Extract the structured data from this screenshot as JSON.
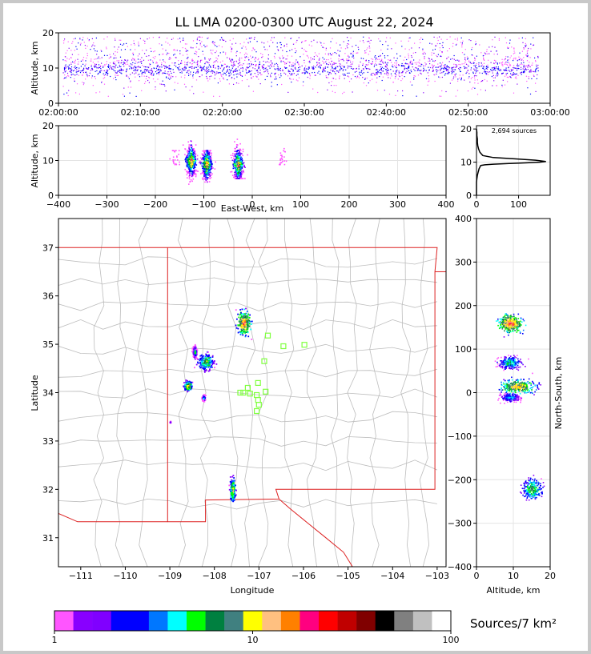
{
  "title": "LL LMA 0200-0300 UTC August 22, 2024",
  "colors": {
    "palette": [
      "#ff55ff",
      "#8800ff",
      "#8000ff",
      "#0000ff",
      "#0000ff",
      "#0077ff",
      "#00ffff",
      "#00ff00",
      "#008040",
      "#408080",
      "#ffff00",
      "#ffc080",
      "#ff8000",
      "#ff0080",
      "#ff0000",
      "#c00000",
      "#800000",
      "#000000",
      "#808080",
      "#c0c0c0",
      "#ffffff"
    ],
    "state_border": "#dd2222",
    "county_border": "#bdbdbd",
    "station_marker": "#80ff40"
  },
  "chart_data": [
    {
      "id": "time-height",
      "type": "scatter",
      "xlabel": "",
      "ylabel": "Altitude, km",
      "xlim": [
        "02:00:00",
        "03:00:00"
      ],
      "ylim": [
        0,
        20
      ],
      "xticks": [
        "02:00:00",
        "02:10:00",
        "02:20:00",
        "02:30:00",
        "02:40:00",
        "02:50:00",
        "03:00:00"
      ],
      "yticks": [
        "0",
        "10",
        "20"
      ],
      "description_points": [
        {
          "t_min": 1,
          "alt": 10
        },
        {
          "t_min": 6,
          "alt": 9
        },
        {
          "t_min": 9,
          "alt": 9.5
        },
        {
          "t_min": 14,
          "alt": 10
        },
        {
          "t_min": 18,
          "alt": 9
        },
        {
          "t_min": 22,
          "alt": 10
        },
        {
          "t_min": 27,
          "alt": 10
        },
        {
          "t_min": 31,
          "alt": 9.5
        },
        {
          "t_min": 36,
          "alt": 10
        },
        {
          "t_min": 40,
          "alt": 9.5
        },
        {
          "t_min": 44,
          "alt": 10
        },
        {
          "t_min": 48,
          "alt": 9
        },
        {
          "t_min": 52,
          "alt": 8.5
        },
        {
          "t_min": 56,
          "alt": 9
        }
      ]
    },
    {
      "id": "ew-height",
      "type": "scatter",
      "xlabel": "East-West, km",
      "ylabel": "Altitude, km",
      "xlim": [
        -400,
        400
      ],
      "ylim": [
        0,
        20
      ],
      "xticks": [
        "−400",
        "−300",
        "−200",
        "−100",
        "0",
        "100",
        "200",
        "300",
        "400"
      ],
      "yticks": [
        "0",
        "10",
        "20"
      ],
      "clusters": [
        {
          "x": -127,
          "alt_min": 2,
          "alt_max": 19,
          "core_alt": 10
        },
        {
          "x": -95,
          "alt_min": 4,
          "alt_max": 13,
          "core_alt": 9
        },
        {
          "x": -30,
          "alt_min": 5,
          "alt_max": 19,
          "core_alt": 9
        },
        {
          "x": -160,
          "alt_min": 9,
          "alt_max": 13,
          "core_alt": 11
        },
        {
          "x": 60,
          "alt_min": 9,
          "alt_max": 18,
          "core_alt": 11
        }
      ]
    },
    {
      "id": "altitude-histogram",
      "type": "line",
      "annotation": "2,694 sources",
      "xlim": [
        0,
        175
      ],
      "ylim": [
        0,
        21
      ],
      "xticks": [
        "0",
        "100"
      ],
      "yticks": [
        "0",
        "10",
        "20"
      ],
      "x": [
        0,
        0,
        1,
        2,
        4,
        6,
        10,
        20,
        40,
        80,
        120,
        150,
        165,
        140,
        90,
        40,
        15,
        8,
        5,
        3,
        2,
        2,
        1,
        1,
        0
      ],
      "y": [
        0,
        4,
        5,
        6,
        7,
        8,
        9,
        9.2,
        9.4,
        9.6,
        9.8,
        10,
        10.2,
        10.6,
        11,
        11.4,
        12,
        13,
        14,
        15,
        16,
        17,
        18,
        19,
        20
      ]
    },
    {
      "id": "plan-view",
      "type": "scatter",
      "xlabel": "Longitude",
      "ylabel": "Latitude",
      "xlim": [
        -111.5,
        -102.8
      ],
      "ylim": [
        30.4,
        37.6
      ],
      "xticks": [
        "−111",
        "−110",
        "−109",
        "−108",
        "−107",
        "−106",
        "−105",
        "−104",
        "−103"
      ],
      "yticks": [
        "31",
        "32",
        "33",
        "34",
        "35",
        "36",
        "37"
      ],
      "storms": [
        {
          "lon": -107.35,
          "lat": 35.45,
          "spread_lon": 0.12,
          "spread_lat": 0.2,
          "intensity": 1.0
        },
        {
          "lon": -108.2,
          "lat": 34.65,
          "spread_lon": 0.15,
          "spread_lat": 0.15,
          "intensity": 0.7
        },
        {
          "lon": -108.45,
          "lat": 34.85,
          "spread_lon": 0.04,
          "spread_lat": 0.12,
          "intensity": 0.5
        },
        {
          "lon": -108.6,
          "lat": 34.15,
          "spread_lon": 0.07,
          "spread_lat": 0.07,
          "intensity": 0.9
        },
        {
          "lon": -108.25,
          "lat": 33.9,
          "spread_lon": 0.03,
          "spread_lat": 0.05,
          "intensity": 0.5
        },
        {
          "lon": -107.6,
          "lat": 32.0,
          "spread_lon": 0.05,
          "spread_lat": 0.2,
          "intensity": 0.8
        },
        {
          "lon": -109.0,
          "lat": 33.4,
          "spread_lon": 0.01,
          "spread_lat": 0.01,
          "intensity": 0.2
        }
      ],
      "stations": [
        {
          "lon": -106.8,
          "lat": 35.18
        },
        {
          "lon": -106.45,
          "lat": 34.96
        },
        {
          "lon": -105.98,
          "lat": 34.99
        },
        {
          "lon": -106.88,
          "lat": 34.65
        },
        {
          "lon": -107.02,
          "lat": 34.2
        },
        {
          "lon": -107.25,
          "lat": 34.1
        },
        {
          "lon": -107.35,
          "lat": 34.0
        },
        {
          "lon": -107.2,
          "lat": 33.98
        },
        {
          "lon": -107.05,
          "lat": 33.95
        },
        {
          "lon": -107.02,
          "lat": 33.85
        },
        {
          "lon": -106.85,
          "lat": 34.02
        },
        {
          "lon": -107.0,
          "lat": 33.75
        },
        {
          "lon": -107.05,
          "lat": 33.62
        },
        {
          "lon": -107.42,
          "lat": 34.0
        }
      ]
    },
    {
      "id": "ns-height",
      "type": "scatter",
      "xlabel": "Altitude, km",
      "ylabel": "North-South, km",
      "xlim": [
        0,
        20
      ],
      "ylim": [
        -400,
        400
      ],
      "xticks": [
        "0",
        "10",
        "20"
      ],
      "yticks": [
        "−400",
        "−300",
        "−200",
        "−100",
        "0",
        "100",
        "200",
        "300",
        "400"
      ],
      "clusters": [
        {
          "ns": 160,
          "alt": 9,
          "spread_ns": 15,
          "spread_alt": 2.5,
          "intensity": 1.0
        },
        {
          "ns": 70,
          "alt": 9,
          "spread_ns": 12,
          "spread_alt": 2.5,
          "intensity": 0.6
        },
        {
          "ns": 15,
          "alt": 11,
          "spread_ns": 12,
          "spread_alt": 3.5,
          "intensity": 0.9
        },
        {
          "ns": -10,
          "alt": 9,
          "spread_ns": 8,
          "spread_alt": 2,
          "intensity": 0.5
        },
        {
          "ns": -220,
          "alt": 15,
          "spread_ns": 18,
          "spread_alt": 2,
          "intensity": 0.7
        }
      ]
    },
    {
      "id": "colorbar",
      "type": "heatmap",
      "label": "Sources/7 km²",
      "scale": "log",
      "ticks": [
        "1",
        "10",
        "100"
      ],
      "colors": [
        "#ff55ff",
        "#8800ff",
        "#8000ff",
        "#0000ff",
        "#0000ff",
        "#0077ff",
        "#00ffff",
        "#00ff00",
        "#008040",
        "#408080",
        "#ffff00",
        "#ffc080",
        "#ff8000",
        "#ff0080",
        "#ff0000",
        "#c00000",
        "#800000",
        "#000000",
        "#808080",
        "#c0c0c0",
        "#ffffff"
      ]
    }
  ]
}
